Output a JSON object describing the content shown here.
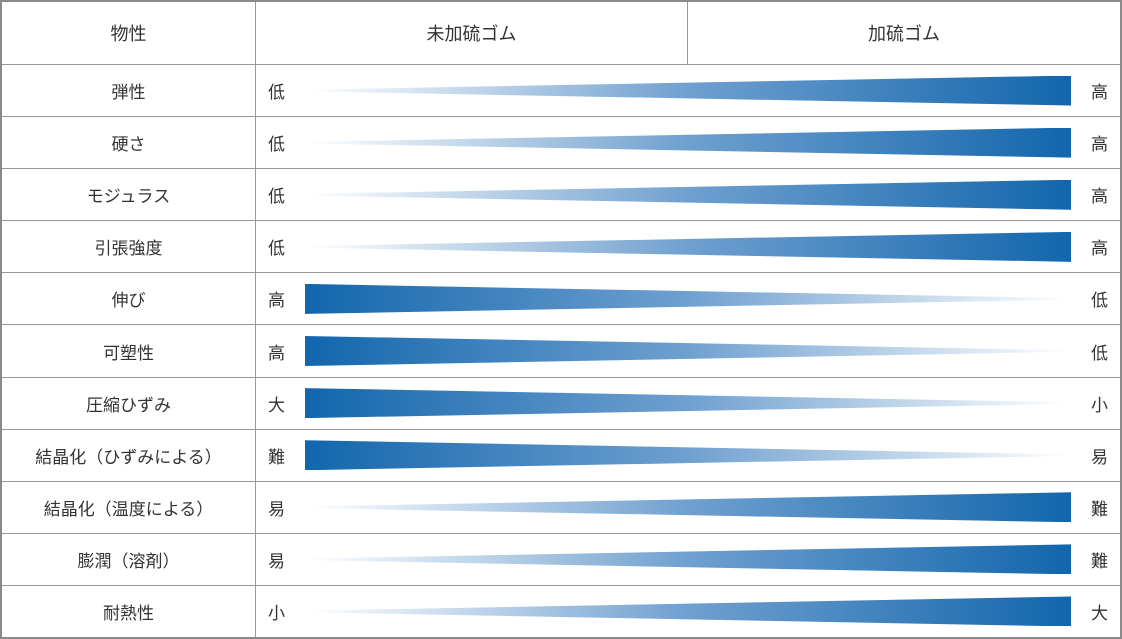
{
  "chart_data": {
    "type": "table",
    "title": "",
    "columns": [
      "物性",
      "未加硫ゴム",
      "加硫ゴム"
    ],
    "rows": [
      {
        "property": "弾性",
        "left_label": "低",
        "right_label": "高",
        "direction": "right"
      },
      {
        "property": "硬さ",
        "left_label": "低",
        "right_label": "高",
        "direction": "right"
      },
      {
        "property": "モジュラス",
        "left_label": "低",
        "right_label": "高",
        "direction": "right"
      },
      {
        "property": "引張強度",
        "left_label": "低",
        "right_label": "高",
        "direction": "right"
      },
      {
        "property": "伸び",
        "left_label": "高",
        "right_label": "低",
        "direction": "left"
      },
      {
        "property": "可塑性",
        "left_label": "高",
        "right_label": "低",
        "direction": "left"
      },
      {
        "property": "圧縮ひずみ",
        "left_label": "大",
        "right_label": "小",
        "direction": "left"
      },
      {
        "property": "結晶化（ひずみによる）",
        "left_label": "難",
        "right_label": "易",
        "direction": "left"
      },
      {
        "property": "結晶化（温度による）",
        "left_label": "易",
        "right_label": "難",
        "direction": "right"
      },
      {
        "property": "膨潤（溶剤）",
        "left_label": "易",
        "right_label": "難",
        "direction": "right"
      },
      {
        "property": "耐熱性",
        "left_label": "小",
        "right_label": "大",
        "direction": "right"
      }
    ],
    "legend_position": "none",
    "grid": "table-borders"
  },
  "colors": {
    "wedge_dark": "#1266ad",
    "wedge_mid": "#6fa0cf",
    "wedge_light": "#ffffff",
    "border_color": "#999999",
    "outer_border": "#8a8a8a",
    "text_color": "#333333"
  }
}
